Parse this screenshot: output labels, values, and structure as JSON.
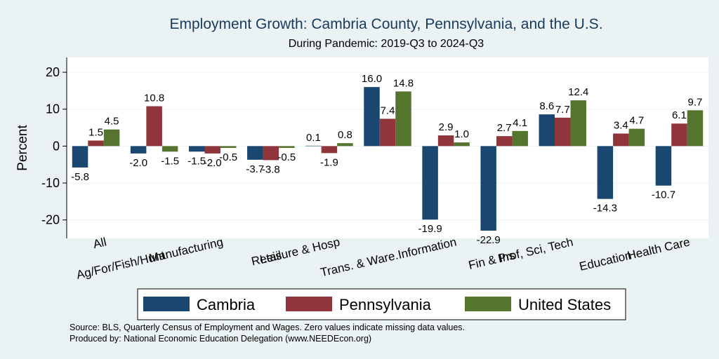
{
  "chart_data": {
    "type": "bar",
    "title": "Employment Growth: Cambria County, Pennsylvania, and the U.S.",
    "subtitle": "During Pandemic: 2019-Q3 to 2024-Q3",
    "xlabel": "",
    "ylabel": "Percent",
    "ylim": [
      -25,
      24
    ],
    "yticks": [
      20,
      10,
      0,
      -10,
      -20
    ],
    "grid": true,
    "legend_position": "bottom",
    "categories": [
      "All",
      "Ag/For/Fish/Hunt",
      "Manufacturing",
      "Retail",
      "Leisure & Hosp",
      "Trans. & Ware.",
      "Information",
      "Fin & Ins",
      "Prof, Sci, Tech",
      "Education",
      "Health Care"
    ],
    "series": [
      {
        "name": "Cambria",
        "color": "#1a476f",
        "values": [
          -5.8,
          -2.0,
          -1.5,
          -3.7,
          0.1,
          16.0,
          -19.9,
          -22.9,
          8.6,
          -14.3,
          -10.7
        ]
      },
      {
        "name": "Pennsylvania",
        "color": "#90353b",
        "values": [
          1.5,
          10.8,
          -2.0,
          -3.8,
          -1.9,
          7.4,
          2.9,
          2.7,
          7.7,
          3.4,
          6.1
        ]
      },
      {
        "name": "United States",
        "color": "#55752f",
        "values": [
          4.5,
          -1.5,
          -0.5,
          -0.5,
          0.8,
          14.8,
          1.0,
          4.1,
          12.4,
          4.7,
          9.7
        ]
      }
    ],
    "source_note": "Source: BLS, Quarterly Census of Employment and Wages. Zero values indicate missing data values.",
    "producer_note": "Produced by: National Economic Education Delegation (www.NEEDEcon.org)"
  }
}
